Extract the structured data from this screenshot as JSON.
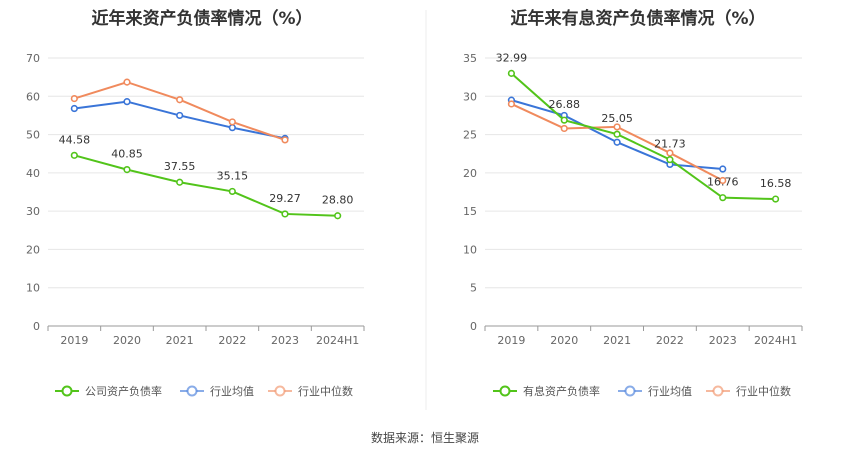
{
  "source": "数据来源：恒生聚源",
  "chart_data": [
    {
      "type": "line",
      "title": "近年来资产负债率情况（%）",
      "categories": [
        "2019",
        "2020",
        "2021",
        "2022",
        "2023",
        "2024H1"
      ],
      "ylim": [
        0,
        70
      ],
      "yticks": [
        0,
        10,
        20,
        30,
        40,
        50,
        60,
        70
      ],
      "grid": true,
      "legend_position": "bottom-center",
      "series": [
        {
          "name": "公司资产负债率",
          "color": "#52c41a",
          "values": [
            44.58,
            40.85,
            37.55,
            35.15,
            29.27,
            28.8
          ],
          "labels": [
            "44.58",
            "40.85",
            "37.55",
            "35.15",
            "29.27",
            "28.80"
          ]
        },
        {
          "name": "行业均值",
          "color": "#3a75d8",
          "values": [
            56.8,
            58.6,
            55.0,
            51.8,
            49.0,
            null
          ]
        },
        {
          "name": "行业中位数",
          "color": "#f08a5d",
          "values": [
            59.4,
            63.7,
            59.1,
            53.3,
            48.6,
            null
          ]
        }
      ]
    },
    {
      "type": "line",
      "title": "近年来有息资产负债率情况（%）",
      "categories": [
        "2019",
        "2020",
        "2021",
        "2022",
        "2023",
        "2024H1"
      ],
      "ylim": [
        0,
        35
      ],
      "yticks": [
        0,
        5,
        10,
        15,
        20,
        25,
        30,
        35
      ],
      "grid": true,
      "legend_position": "bottom-center",
      "series": [
        {
          "name": "有息资产负债率",
          "color": "#52c41a",
          "values": [
            32.99,
            26.88,
            25.05,
            21.73,
            16.76,
            16.58
          ],
          "labels": [
            "32.99",
            "26.88",
            "25.05",
            "21.73",
            "16.76",
            "16.58"
          ]
        },
        {
          "name": "行业均值",
          "color": "#3a75d8",
          "values": [
            29.5,
            27.5,
            24.0,
            21.1,
            20.5,
            null
          ]
        },
        {
          "name": "行业中位数",
          "color": "#f08a5d",
          "values": [
            29.0,
            25.8,
            26.0,
            22.6,
            19.0,
            null
          ]
        }
      ]
    }
  ]
}
